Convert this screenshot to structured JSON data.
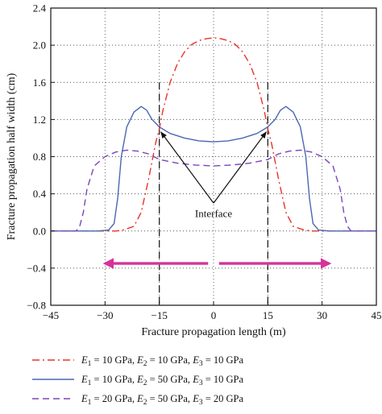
{
  "chart_data": {
    "type": "line",
    "xlabel": "Fracture propagation length (m)",
    "ylabel": "Fracture propagation half width (cm)",
    "xlim": [
      -45,
      45
    ],
    "ylim": [
      -0.8,
      2.4
    ],
    "x_ticks": [
      -45,
      -30,
      -15,
      0,
      15,
      30,
      45
    ],
    "y_ticks": [
      "−0.8",
      "−0.4",
      "0.0",
      "0.4",
      "0.8",
      "1.2",
      "1.6",
      "2.0",
      "2.4"
    ],
    "x_tick_labels": [
      "−45",
      "−30",
      "−15",
      "0",
      "15",
      "30",
      "45"
    ],
    "grid": "dotted",
    "interfaces_x": [
      -15,
      15
    ],
    "annotation": {
      "text": "Interface",
      "x": 0,
      "y": 0.3
    },
    "arrows": [
      "left",
      "right"
    ],
    "series": [
      {
        "legend": [
          "E",
          "1",
          " = 10 GPa, ",
          "E",
          "2",
          " = 10 GPa, ",
          "E",
          "3",
          " = 10 GPa"
        ],
        "color": "#e8332a",
        "style": "dashdot",
        "x": [
          -45,
          -27,
          -25,
          -22,
          -20,
          -18,
          -16,
          -15,
          -14,
          -12,
          -10,
          -8,
          -6,
          -4,
          -2,
          0,
          2,
          4,
          6,
          8,
          10,
          12,
          14,
          15,
          16,
          18,
          20,
          22,
          25,
          27,
          45
        ],
        "y": [
          0.0,
          0.0,
          0.01,
          0.05,
          0.2,
          0.55,
          0.95,
          1.1,
          1.3,
          1.6,
          1.8,
          1.93,
          2.01,
          2.05,
          2.07,
          2.08,
          2.07,
          2.05,
          2.01,
          1.93,
          1.8,
          1.6,
          1.3,
          1.1,
          0.95,
          0.55,
          0.2,
          0.05,
          0.01,
          0.0,
          0.0
        ]
      },
      {
        "legend": [
          "E",
          "1",
          " = 10 GPa, ",
          "E",
          "2",
          " = 50 GPa, ",
          "E",
          "3",
          " = 10 GPa"
        ],
        "color": "#4a67b0",
        "style": "solid",
        "x": [
          -45,
          -32,
          -29,
          -27.5,
          -26.5,
          -25.5,
          -24,
          -22,
          -20,
          -18.5,
          -17,
          -15,
          -12,
          -8,
          -4,
          0,
          4,
          8,
          12,
          15,
          17,
          18.5,
          20,
          22,
          24,
          25.5,
          26.5,
          27.5,
          29,
          32,
          45
        ],
        "y": [
          0.0,
          0.0,
          0.01,
          0.08,
          0.35,
          0.8,
          1.12,
          1.28,
          1.34,
          1.3,
          1.2,
          1.12,
          1.05,
          1.0,
          0.97,
          0.96,
          0.97,
          1.0,
          1.05,
          1.12,
          1.2,
          1.3,
          1.34,
          1.28,
          1.12,
          0.8,
          0.35,
          0.08,
          0.01,
          0.0,
          0.0
        ]
      },
      {
        "legend": [
          "E",
          "1",
          " = 20 GPa, ",
          "E",
          "2",
          " = 50 GPa, ",
          "E",
          "3",
          " = 20 GPa"
        ],
        "color": "#7a45b8",
        "style": "dashed",
        "x": [
          -45,
          -38,
          -37,
          -36,
          -35,
          -33,
          -30,
          -27,
          -24,
          -21,
          -18,
          -15,
          -10,
          -5,
          0,
          5,
          10,
          15,
          18,
          21,
          24,
          27,
          30,
          33,
          35,
          36,
          37,
          38,
          45
        ],
        "y": [
          0.0,
          0.0,
          0.05,
          0.2,
          0.45,
          0.7,
          0.8,
          0.85,
          0.87,
          0.86,
          0.83,
          0.77,
          0.73,
          0.71,
          0.7,
          0.71,
          0.73,
          0.77,
          0.83,
          0.86,
          0.87,
          0.85,
          0.8,
          0.7,
          0.45,
          0.2,
          0.05,
          0.0,
          0.0
        ]
      }
    ]
  }
}
